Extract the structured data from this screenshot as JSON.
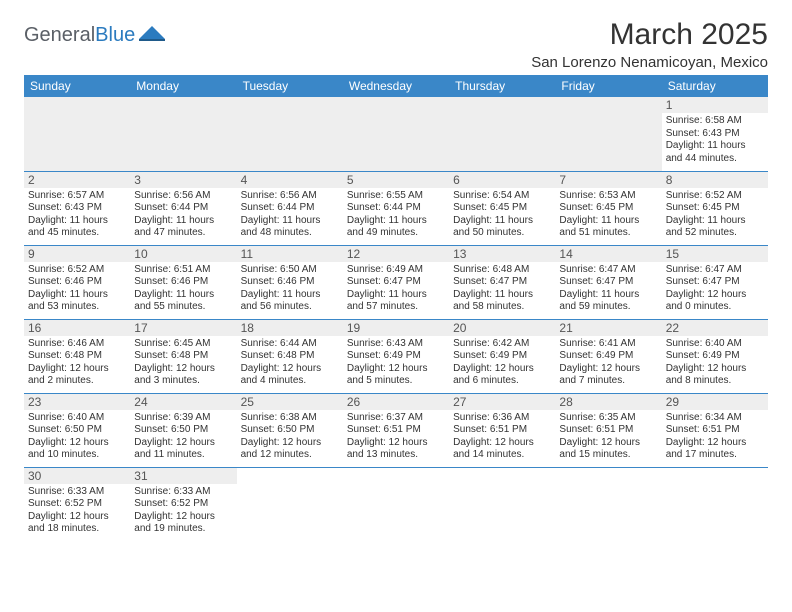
{
  "brand": {
    "part1": "General",
    "part2": "Blue"
  },
  "title": "March 2025",
  "location": "San Lorenzo Nenamicoyan, Mexico",
  "colors": {
    "header_bg": "#3a87c8",
    "header_fg": "#ffffff",
    "daynum_bg": "#eeeeee",
    "rule": "#3a87c8",
    "text": "#333333",
    "logo_gray": "#5a5f66",
    "logo_blue": "#2b7bbf"
  },
  "day_headers": [
    "Sunday",
    "Monday",
    "Tuesday",
    "Wednesday",
    "Thursday",
    "Friday",
    "Saturday"
  ],
  "weeks": [
    [
      null,
      null,
      null,
      null,
      null,
      null,
      {
        "n": "1",
        "sunrise": "Sunrise: 6:58 AM",
        "sunset": "Sunset: 6:43 PM",
        "daylight": "Daylight: 11 hours and 44 minutes."
      }
    ],
    [
      {
        "n": "2",
        "sunrise": "Sunrise: 6:57 AM",
        "sunset": "Sunset: 6:43 PM",
        "daylight": "Daylight: 11 hours and 45 minutes."
      },
      {
        "n": "3",
        "sunrise": "Sunrise: 6:56 AM",
        "sunset": "Sunset: 6:44 PM",
        "daylight": "Daylight: 11 hours and 47 minutes."
      },
      {
        "n": "4",
        "sunrise": "Sunrise: 6:56 AM",
        "sunset": "Sunset: 6:44 PM",
        "daylight": "Daylight: 11 hours and 48 minutes."
      },
      {
        "n": "5",
        "sunrise": "Sunrise: 6:55 AM",
        "sunset": "Sunset: 6:44 PM",
        "daylight": "Daylight: 11 hours and 49 minutes."
      },
      {
        "n": "6",
        "sunrise": "Sunrise: 6:54 AM",
        "sunset": "Sunset: 6:45 PM",
        "daylight": "Daylight: 11 hours and 50 minutes."
      },
      {
        "n": "7",
        "sunrise": "Sunrise: 6:53 AM",
        "sunset": "Sunset: 6:45 PM",
        "daylight": "Daylight: 11 hours and 51 minutes."
      },
      {
        "n": "8",
        "sunrise": "Sunrise: 6:52 AM",
        "sunset": "Sunset: 6:45 PM",
        "daylight": "Daylight: 11 hours and 52 minutes."
      }
    ],
    [
      {
        "n": "9",
        "sunrise": "Sunrise: 6:52 AM",
        "sunset": "Sunset: 6:46 PM",
        "daylight": "Daylight: 11 hours and 53 minutes."
      },
      {
        "n": "10",
        "sunrise": "Sunrise: 6:51 AM",
        "sunset": "Sunset: 6:46 PM",
        "daylight": "Daylight: 11 hours and 55 minutes."
      },
      {
        "n": "11",
        "sunrise": "Sunrise: 6:50 AM",
        "sunset": "Sunset: 6:46 PM",
        "daylight": "Daylight: 11 hours and 56 minutes."
      },
      {
        "n": "12",
        "sunrise": "Sunrise: 6:49 AM",
        "sunset": "Sunset: 6:47 PM",
        "daylight": "Daylight: 11 hours and 57 minutes."
      },
      {
        "n": "13",
        "sunrise": "Sunrise: 6:48 AM",
        "sunset": "Sunset: 6:47 PM",
        "daylight": "Daylight: 11 hours and 58 minutes."
      },
      {
        "n": "14",
        "sunrise": "Sunrise: 6:47 AM",
        "sunset": "Sunset: 6:47 PM",
        "daylight": "Daylight: 11 hours and 59 minutes."
      },
      {
        "n": "15",
        "sunrise": "Sunrise: 6:47 AM",
        "sunset": "Sunset: 6:47 PM",
        "daylight": "Daylight: 12 hours and 0 minutes."
      }
    ],
    [
      {
        "n": "16",
        "sunrise": "Sunrise: 6:46 AM",
        "sunset": "Sunset: 6:48 PM",
        "daylight": "Daylight: 12 hours and 2 minutes."
      },
      {
        "n": "17",
        "sunrise": "Sunrise: 6:45 AM",
        "sunset": "Sunset: 6:48 PM",
        "daylight": "Daylight: 12 hours and 3 minutes."
      },
      {
        "n": "18",
        "sunrise": "Sunrise: 6:44 AM",
        "sunset": "Sunset: 6:48 PM",
        "daylight": "Daylight: 12 hours and 4 minutes."
      },
      {
        "n": "19",
        "sunrise": "Sunrise: 6:43 AM",
        "sunset": "Sunset: 6:49 PM",
        "daylight": "Daylight: 12 hours and 5 minutes."
      },
      {
        "n": "20",
        "sunrise": "Sunrise: 6:42 AM",
        "sunset": "Sunset: 6:49 PM",
        "daylight": "Daylight: 12 hours and 6 minutes."
      },
      {
        "n": "21",
        "sunrise": "Sunrise: 6:41 AM",
        "sunset": "Sunset: 6:49 PM",
        "daylight": "Daylight: 12 hours and 7 minutes."
      },
      {
        "n": "22",
        "sunrise": "Sunrise: 6:40 AM",
        "sunset": "Sunset: 6:49 PM",
        "daylight": "Daylight: 12 hours and 8 minutes."
      }
    ],
    [
      {
        "n": "23",
        "sunrise": "Sunrise: 6:40 AM",
        "sunset": "Sunset: 6:50 PM",
        "daylight": "Daylight: 12 hours and 10 minutes."
      },
      {
        "n": "24",
        "sunrise": "Sunrise: 6:39 AM",
        "sunset": "Sunset: 6:50 PM",
        "daylight": "Daylight: 12 hours and 11 minutes."
      },
      {
        "n": "25",
        "sunrise": "Sunrise: 6:38 AM",
        "sunset": "Sunset: 6:50 PM",
        "daylight": "Daylight: 12 hours and 12 minutes."
      },
      {
        "n": "26",
        "sunrise": "Sunrise: 6:37 AM",
        "sunset": "Sunset: 6:51 PM",
        "daylight": "Daylight: 12 hours and 13 minutes."
      },
      {
        "n": "27",
        "sunrise": "Sunrise: 6:36 AM",
        "sunset": "Sunset: 6:51 PM",
        "daylight": "Daylight: 12 hours and 14 minutes."
      },
      {
        "n": "28",
        "sunrise": "Sunrise: 6:35 AM",
        "sunset": "Sunset: 6:51 PM",
        "daylight": "Daylight: 12 hours and 15 minutes."
      },
      {
        "n": "29",
        "sunrise": "Sunrise: 6:34 AM",
        "sunset": "Sunset: 6:51 PM",
        "daylight": "Daylight: 12 hours and 17 minutes."
      }
    ],
    [
      {
        "n": "30",
        "sunrise": "Sunrise: 6:33 AM",
        "sunset": "Sunset: 6:52 PM",
        "daylight": "Daylight: 12 hours and 18 minutes."
      },
      {
        "n": "31",
        "sunrise": "Sunrise: 6:33 AM",
        "sunset": "Sunset: 6:52 PM",
        "daylight": "Daylight: 12 hours and 19 minutes."
      },
      null,
      null,
      null,
      null,
      null
    ]
  ]
}
